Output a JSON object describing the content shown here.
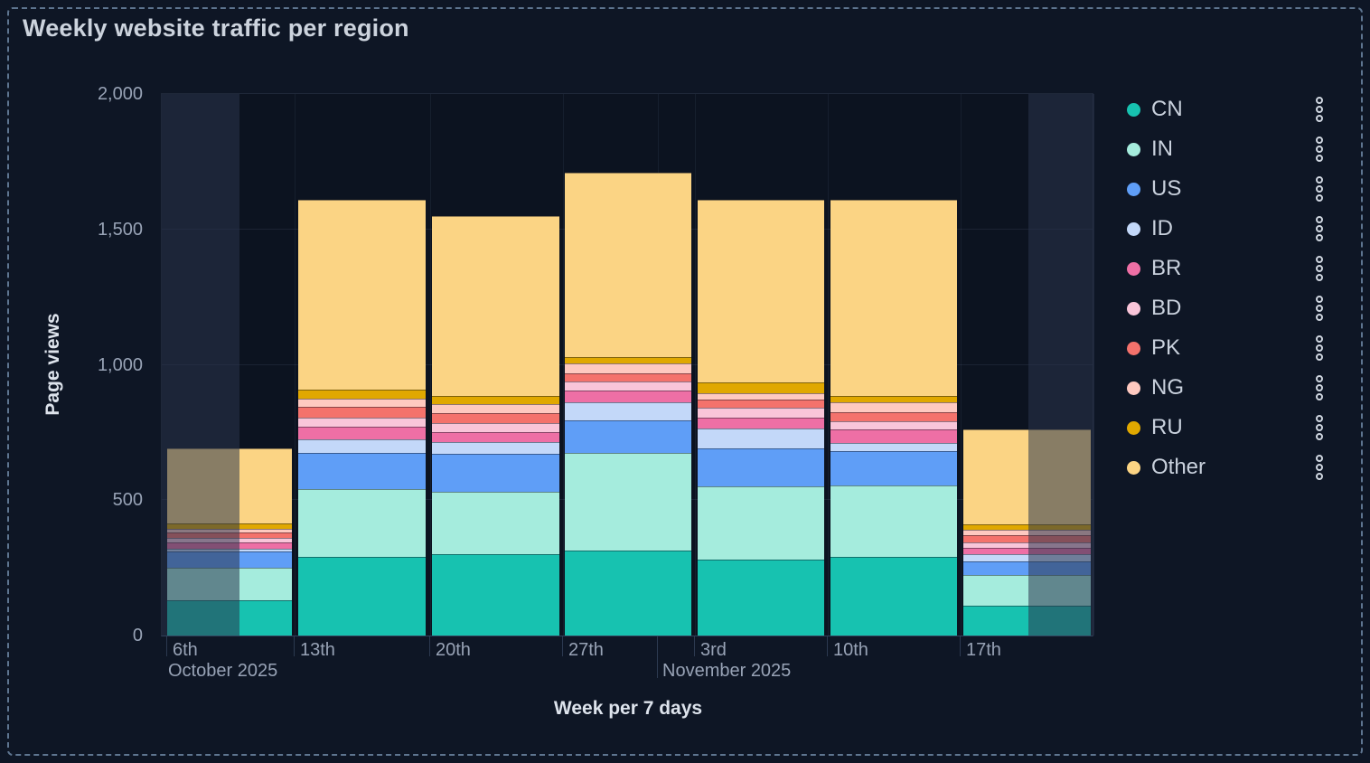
{
  "panel": {
    "title": "Weekly website traffic per region"
  },
  "colors": {
    "panel_background": "#0e1625",
    "plot_background": "#0c1320",
    "dashed_border": "#5e7590",
    "grid_line": "#2c3a52",
    "tick_text": "#98a3b6",
    "label_text": "#dde3ec",
    "legend_text": "#c9d1dd"
  },
  "chart_data": {
    "type": "bar",
    "stacked": true,
    "title": "Weekly website traffic per region",
    "xlabel": "Week per 7 days",
    "ylabel": "Page views",
    "ylim": [
      0,
      2000
    ],
    "grid": true,
    "legend_position": "right",
    "dimmed_edges": true,
    "categories": [
      "6th",
      "13th",
      "20th",
      "27th",
      "3rd",
      "10th",
      "17th"
    ],
    "month_labels": [
      {
        "label": "October 2025"
      },
      {
        "label": "November 2025"
      }
    ],
    "y_ticks": [
      {
        "value": 0,
        "label": "0"
      },
      {
        "value": 500,
        "label": "500"
      },
      {
        "value": 1000,
        "label": "1,000"
      },
      {
        "value": 1500,
        "label": "1,500"
      },
      {
        "value": 2000,
        "label": "2,000"
      }
    ],
    "series": [
      {
        "name": "CN",
        "color": "#17c2b0",
        "values": [
          130,
          290,
          300,
          315,
          280,
          290,
          110
        ]
      },
      {
        "name": "IN",
        "color": "#a5ecdd",
        "values": [
          120,
          250,
          230,
          360,
          270,
          265,
          115
        ]
      },
      {
        "name": "US",
        "color": "#5f9ef7",
        "values": [
          60,
          135,
          140,
          120,
          140,
          125,
          50
        ]
      },
      {
        "name": "ID",
        "color": "#c3d8f9",
        "values": [
          10,
          50,
          45,
          65,
          75,
          30,
          25
        ]
      },
      {
        "name": "BR",
        "color": "#ee6fa5",
        "values": [
          25,
          45,
          35,
          45,
          40,
          50,
          25
        ]
      },
      {
        "name": "BD",
        "color": "#f9c5d9",
        "values": [
          15,
          35,
          35,
          35,
          35,
          30,
          20
        ]
      },
      {
        "name": "PK",
        "color": "#f4726c",
        "values": [
          20,
          40,
          35,
          30,
          30,
          35,
          25
        ]
      },
      {
        "name": "NG",
        "color": "#fec9c0",
        "values": [
          15,
          30,
          35,
          35,
          25,
          35,
          20
        ]
      },
      {
        "name": "RU",
        "color": "#e0a800",
        "values": [
          20,
          35,
          30,
          25,
          40,
          25,
          20
        ]
      },
      {
        "name": "Other",
        "color": "#fbd484",
        "values": [
          275,
          700,
          665,
          680,
          675,
          725,
          350
        ]
      }
    ],
    "totals": [
      690,
      1610,
      1550,
      1710,
      1610,
      1610,
      760
    ]
  }
}
